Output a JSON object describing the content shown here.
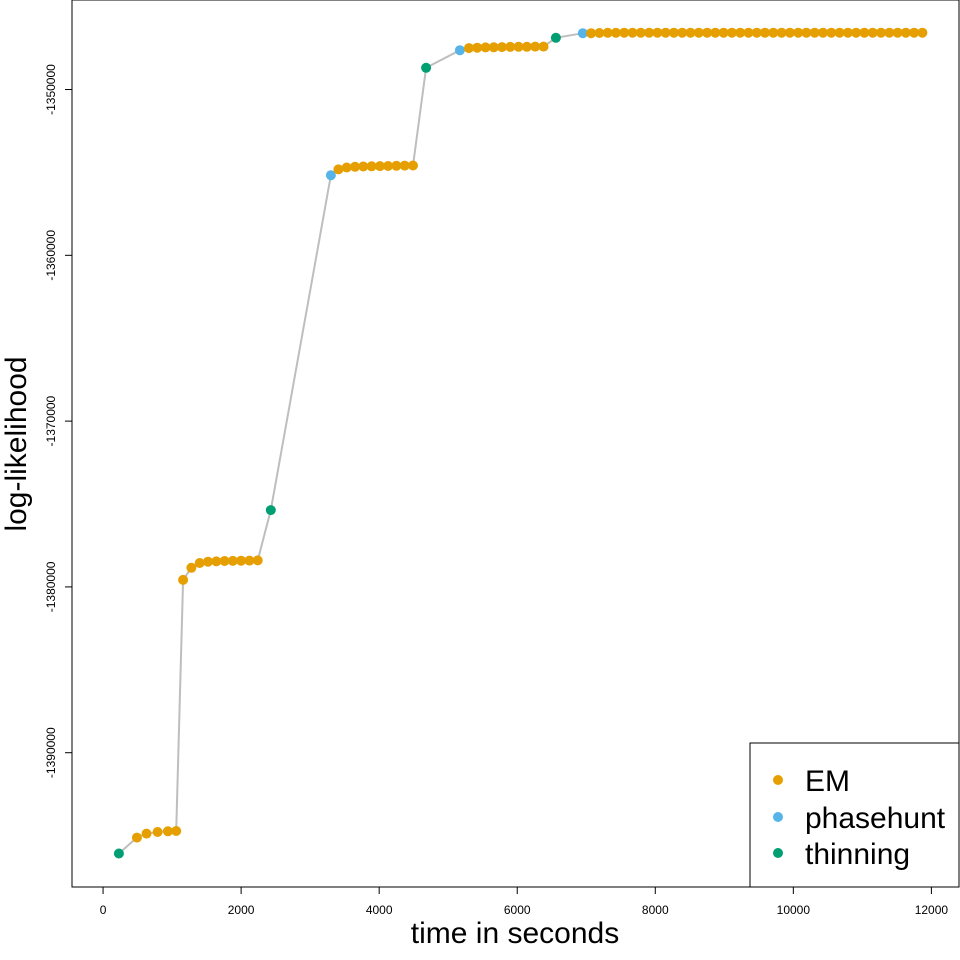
{
  "chart_data": {
    "type": "scatter",
    "title": "",
    "xlabel": "time in seconds",
    "ylabel": "log-likelihood",
    "xlim": [
      -450,
      12400
    ],
    "ylim": [
      -1398100,
      -1344600
    ],
    "x_ticks": [
      0,
      2000,
      4000,
      6000,
      8000,
      10000,
      12000
    ],
    "x_tick_labels": [
      "0",
      "2000",
      "4000",
      "6000",
      "8000",
      "10000",
      "12000"
    ],
    "y_ticks": [
      -1390000,
      -1380000,
      -1370000,
      -1360000,
      -1350000
    ],
    "y_tick_labels": [
      "-1390000",
      "-1380000",
      "-1370000",
      "-1360000",
      "-1350000"
    ],
    "grid": false,
    "legend_position": "bottom-right",
    "connector_line": true,
    "colors": {
      "EM": "#e69f00",
      "phasehunt": "#56b4e9",
      "thinning": "#009e73",
      "line": "#bebebe"
    },
    "series": [
      {
        "name": "EM",
        "color": "#e69f00",
        "points": [
          [
            490,
            -1395120
          ],
          [
            630,
            -1394880
          ],
          [
            790,
            -1394780
          ],
          [
            940,
            -1394740
          ],
          [
            1060,
            -1394720
          ],
          [
            1160,
            -1379580
          ],
          [
            1280,
            -1378850
          ],
          [
            1400,
            -1378560
          ],
          [
            1520,
            -1378480
          ],
          [
            1640,
            -1378460
          ],
          [
            1760,
            -1378440
          ],
          [
            1880,
            -1378430
          ],
          [
            2000,
            -1378420
          ],
          [
            2120,
            -1378410
          ],
          [
            2240,
            -1378400
          ],
          [
            3410,
            -1354820
          ],
          [
            3530,
            -1354700
          ],
          [
            3650,
            -1354660
          ],
          [
            3770,
            -1354640
          ],
          [
            3890,
            -1354630
          ],
          [
            4010,
            -1354620
          ],
          [
            4130,
            -1354610
          ],
          [
            4250,
            -1354600
          ],
          [
            4370,
            -1354590
          ],
          [
            4490,
            -1354580
          ],
          [
            5300,
            -1347500
          ],
          [
            5420,
            -1347480
          ],
          [
            5540,
            -1347460
          ],
          [
            5660,
            -1347450
          ],
          [
            5780,
            -1347440
          ],
          [
            5900,
            -1347430
          ],
          [
            6020,
            -1347420
          ],
          [
            6140,
            -1347420
          ],
          [
            6260,
            -1347410
          ],
          [
            6380,
            -1347410
          ],
          [
            7070,
            -1346600
          ],
          [
            7190,
            -1346590
          ],
          [
            7310,
            -1346580
          ],
          [
            7430,
            -1346580
          ],
          [
            7550,
            -1346575
          ],
          [
            7670,
            -1346575
          ],
          [
            7790,
            -1346570
          ],
          [
            7910,
            -1346570
          ],
          [
            8030,
            -1346570
          ],
          [
            8150,
            -1346570
          ],
          [
            8270,
            -1346570
          ],
          [
            8390,
            -1346570
          ],
          [
            8510,
            -1346570
          ],
          [
            8630,
            -1346570
          ],
          [
            8750,
            -1346570
          ],
          [
            8870,
            -1346570
          ],
          [
            8990,
            -1346570
          ],
          [
            9110,
            -1346570
          ],
          [
            9230,
            -1346570
          ],
          [
            9350,
            -1346570
          ],
          [
            9470,
            -1346570
          ],
          [
            9590,
            -1346570
          ],
          [
            9710,
            -1346570
          ],
          [
            9830,
            -1346570
          ],
          [
            9950,
            -1346570
          ],
          [
            10070,
            -1346570
          ],
          [
            10190,
            -1346570
          ],
          [
            10310,
            -1346570
          ],
          [
            10430,
            -1346570
          ],
          [
            10550,
            -1346570
          ],
          [
            10670,
            -1346570
          ],
          [
            10790,
            -1346570
          ],
          [
            10910,
            -1346570
          ],
          [
            11030,
            -1346570
          ],
          [
            11150,
            -1346570
          ],
          [
            11270,
            -1346570
          ],
          [
            11390,
            -1346570
          ],
          [
            11510,
            -1346570
          ],
          [
            11630,
            -1346570
          ],
          [
            11750,
            -1346570
          ],
          [
            11870,
            -1346570
          ]
        ]
      },
      {
        "name": "phasehunt",
        "color": "#56b4e9",
        "points": [
          [
            3300,
            -1355170
          ],
          [
            5170,
            -1347630
          ],
          [
            6950,
            -1346600
          ]
        ]
      },
      {
        "name": "thinning",
        "color": "#009e73",
        "points": [
          [
            230,
            -1396080
          ],
          [
            2430,
            -1375370
          ],
          [
            4680,
            -1348690
          ],
          [
            6560,
            -1346880
          ]
        ]
      }
    ]
  }
}
